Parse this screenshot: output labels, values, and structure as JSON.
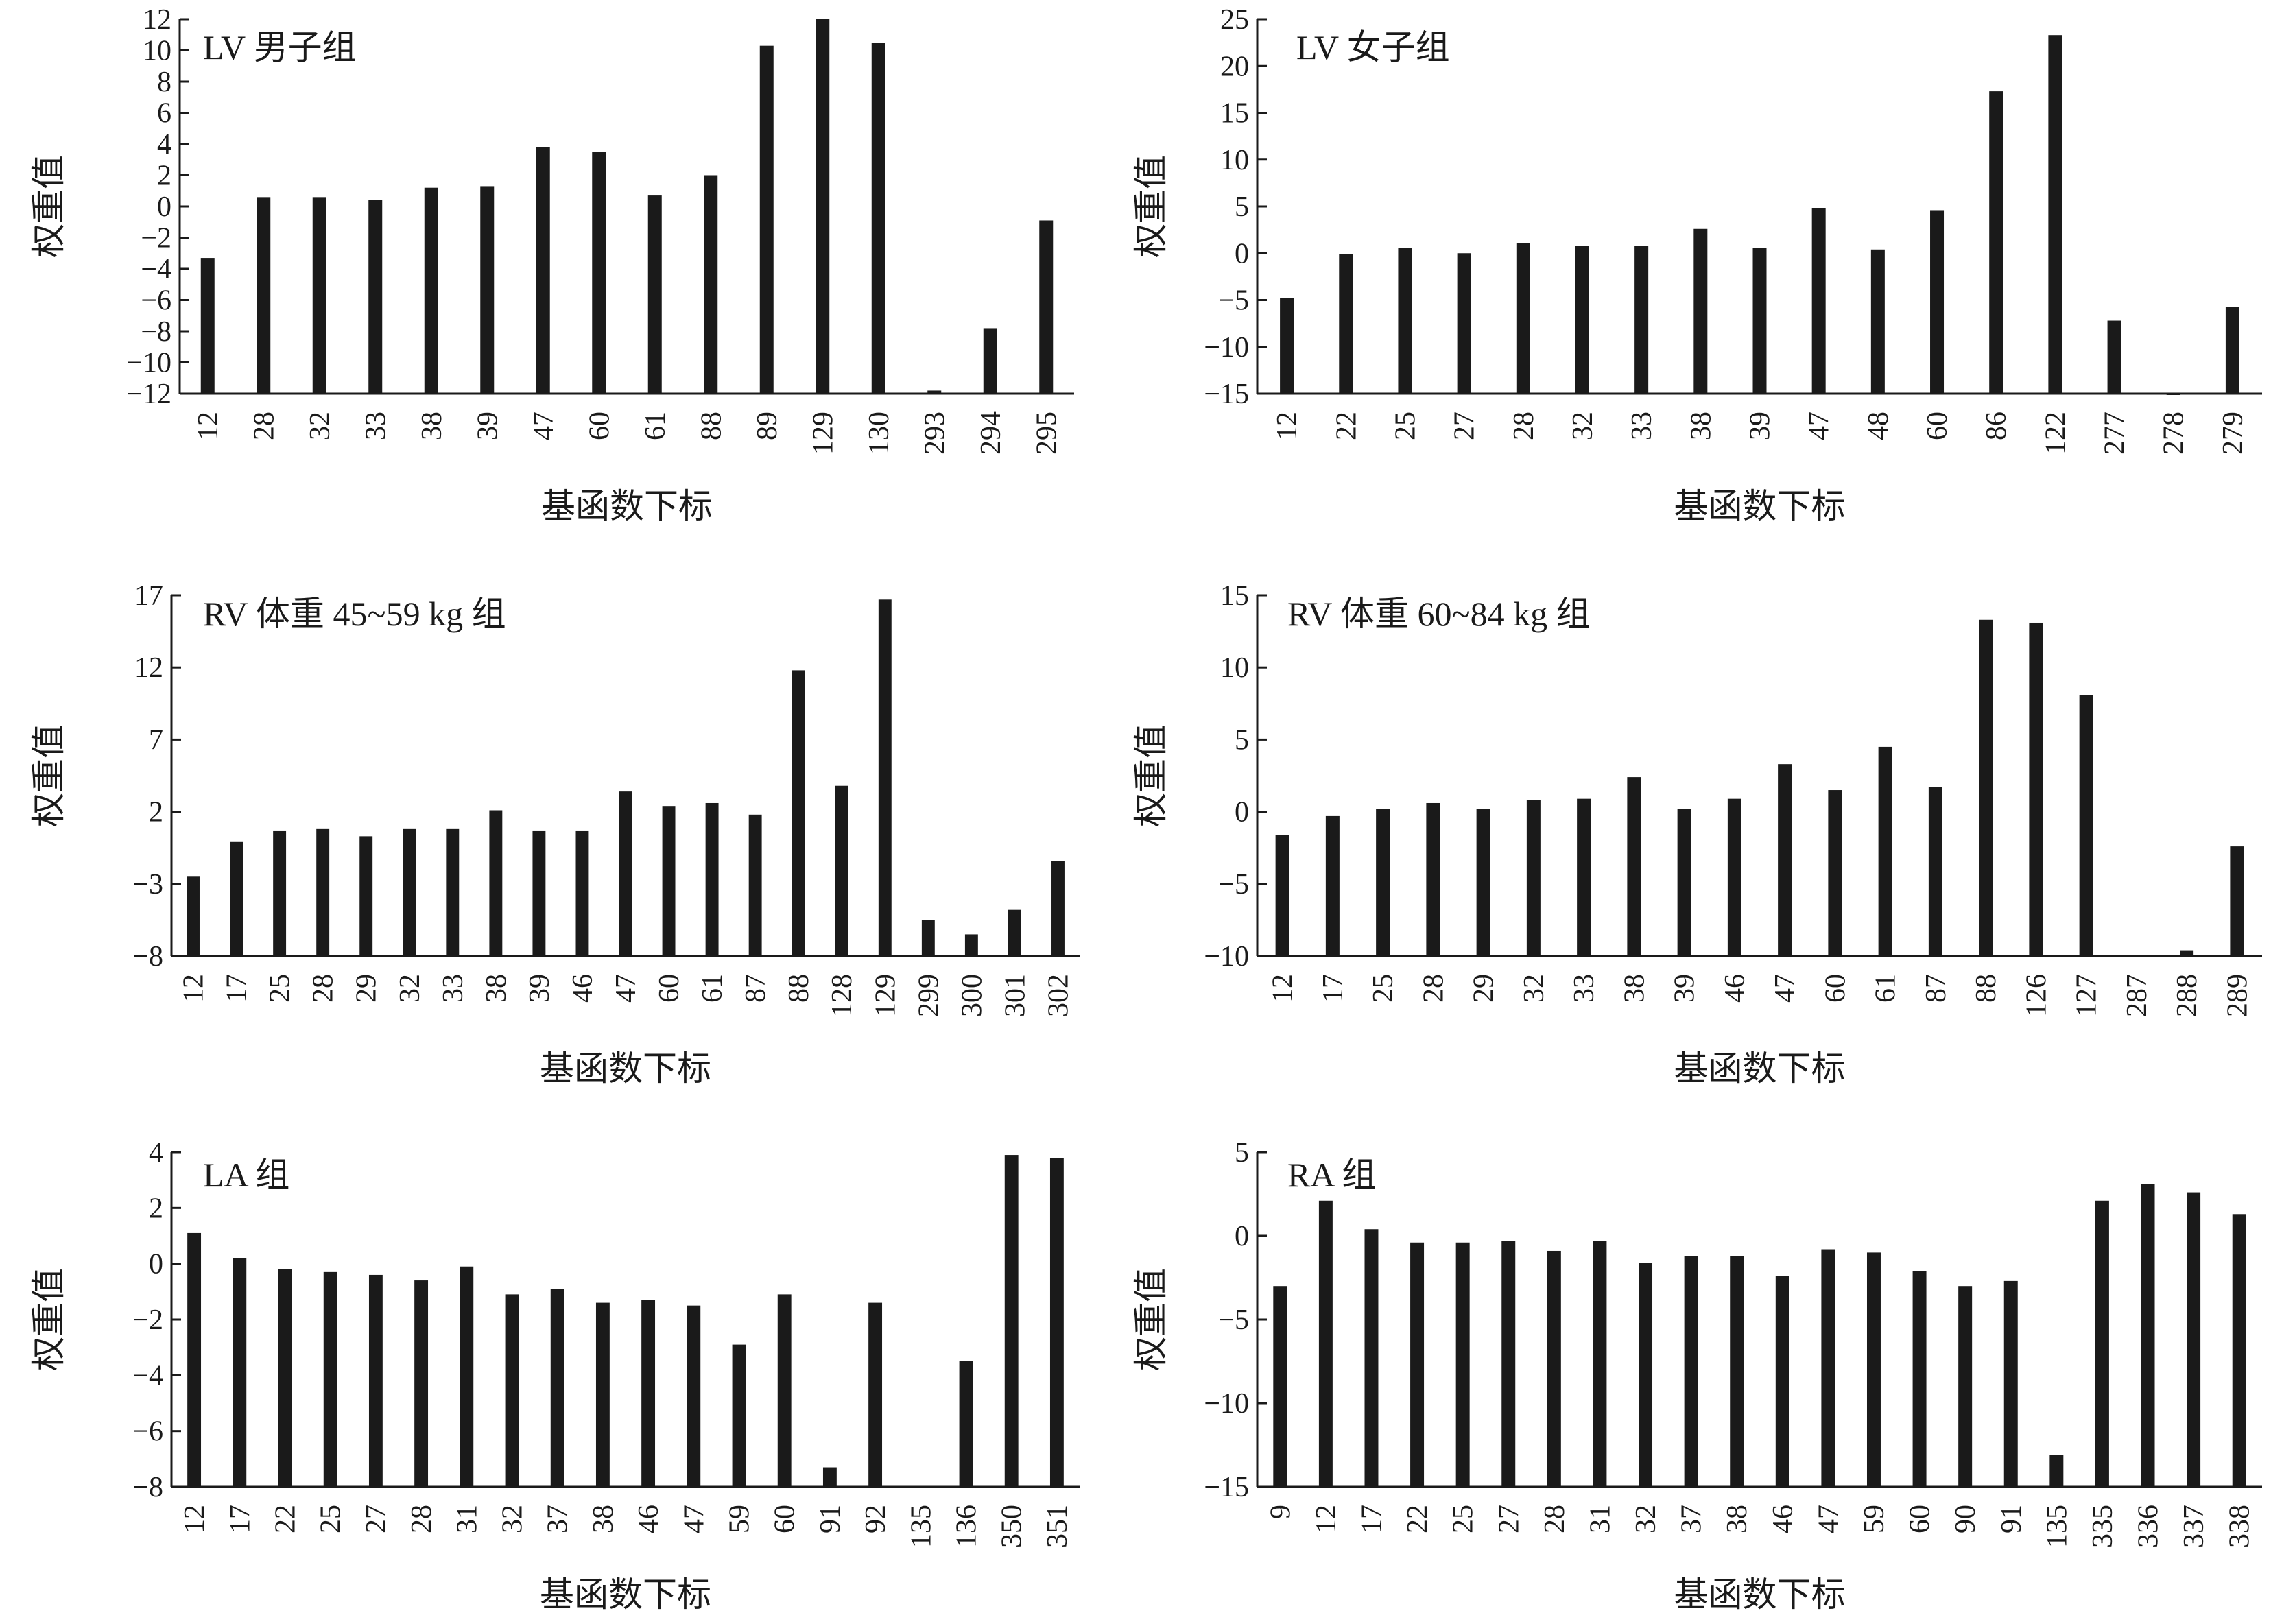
{
  "chart_data": [
    {
      "type": "bar",
      "title": "LV 男子组",
      "xlabel": "基函数下标",
      "ylabel": "权重值",
      "ylim": [
        -12,
        12
      ],
      "yticks": [
        -12,
        -10,
        -8,
        -6,
        -4,
        -2,
        0,
        2,
        4,
        6,
        8,
        10,
        12
      ],
      "categories": [
        "12",
        "28",
        "32",
        "33",
        "38",
        "39",
        "47",
        "60",
        "61",
        "88",
        "89",
        "129",
        "130",
        "293",
        "294",
        "295"
      ],
      "values": [
        -3.3,
        0.6,
        0.6,
        0.4,
        1.2,
        1.3,
        3.8,
        3.5,
        0.7,
        2.0,
        10.3,
        12.0,
        10.5,
        -11.8,
        -7.8,
        -0.9
      ],
      "grid": false
    },
    {
      "type": "bar",
      "title": "LV 女子组",
      "xlabel": "基函数下标",
      "ylabel": "权重值",
      "ylim": [
        -15,
        25
      ],
      "yticks": [
        -15,
        -10,
        -5,
        0,
        5,
        10,
        15,
        20,
        25
      ],
      "categories": [
        "12",
        "22",
        "25",
        "27",
        "28",
        "32",
        "33",
        "38",
        "39",
        "47",
        "48",
        "60",
        "86",
        "122",
        "277",
        "278",
        "279"
      ],
      "values": [
        -4.8,
        -0.1,
        0.6,
        0.0,
        1.1,
        0.8,
        0.8,
        2.6,
        0.6,
        4.8,
        0.4,
        4.6,
        17.3,
        23.3,
        -7.2,
        -15.0,
        -5.7
      ],
      "grid": false
    },
    {
      "type": "bar",
      "title": "RV 体重 45~59 kg 组",
      "xlabel": "基函数下标",
      "ylabel": "权重值",
      "ylim": [
        -8,
        17
      ],
      "yticks": [
        -8,
        -3,
        2,
        7,
        12,
        17
      ],
      "categories": [
        "12",
        "17",
        "25",
        "28",
        "29",
        "32",
        "33",
        "38",
        "39",
        "46",
        "47",
        "60",
        "61",
        "87",
        "88",
        "128",
        "129",
        "299",
        "300",
        "301",
        "302"
      ],
      "values": [
        -2.5,
        -0.1,
        0.7,
        0.8,
        0.3,
        0.8,
        0.8,
        2.1,
        0.7,
        0.7,
        3.4,
        2.4,
        2.6,
        1.8,
        11.8,
        3.8,
        16.7,
        -5.5,
        -6.5,
        -4.8,
        -1.4
      ],
      "grid": false
    },
    {
      "type": "bar",
      "title": "RV 体重 60~84 kg 组",
      "xlabel": "基函数下标",
      "ylabel": "权重值",
      "ylim": [
        -10,
        15
      ],
      "yticks": [
        -10,
        -5,
        0,
        5,
        10,
        15
      ],
      "categories": [
        "12",
        "17",
        "25",
        "28",
        "29",
        "32",
        "33",
        "38",
        "39",
        "46",
        "47",
        "60",
        "61",
        "87",
        "88",
        "126",
        "127",
        "287",
        "288",
        "289"
      ],
      "values": [
        -1.6,
        -0.3,
        0.2,
        0.6,
        0.2,
        0.8,
        0.9,
        2.4,
        0.2,
        0.9,
        3.3,
        1.5,
        4.5,
        1.7,
        13.3,
        13.1,
        8.1,
        -10.0,
        -9.6,
        -2.4
      ],
      "grid": false
    },
    {
      "type": "bar",
      "title": "LA 组",
      "xlabel": "基函数下标",
      "ylabel": "权重值",
      "ylim": [
        -8,
        4
      ],
      "yticks": [
        -8,
        -6,
        -4,
        -2,
        0,
        2,
        4
      ],
      "categories": [
        "12",
        "17",
        "22",
        "25",
        "27",
        "28",
        "31",
        "32",
        "37",
        "38",
        "46",
        "47",
        "59",
        "60",
        "91",
        "92",
        "135",
        "136",
        "350",
        "351"
      ],
      "values": [
        1.1,
        0.2,
        -0.2,
        -0.3,
        -0.4,
        -0.6,
        -0.1,
        -1.1,
        -0.9,
        -1.4,
        -1.3,
        -1.5,
        -2.9,
        -1.1,
        -7.3,
        -1.4,
        -8.0,
        -3.5,
        3.9,
        3.8
      ],
      "grid": false
    },
    {
      "type": "bar",
      "title": "RA 组",
      "xlabel": "基函数下标",
      "ylabel": "权重值",
      "ylim": [
        -15,
        5
      ],
      "yticks": [
        -15,
        -10,
        -5,
        0,
        5
      ],
      "categories": [
        "9",
        "12",
        "17",
        "22",
        "25",
        "27",
        "28",
        "31",
        "32",
        "37",
        "38",
        "46",
        "47",
        "59",
        "60",
        "90",
        "91",
        "135",
        "335",
        "336",
        "337",
        "338"
      ],
      "values": [
        -3.0,
        2.1,
        0.4,
        -0.4,
        -0.4,
        -0.3,
        -0.9,
        -0.3,
        -1.6,
        -1.2,
        -1.2,
        -2.4,
        -0.8,
        -1.0,
        -2.1,
        -3.0,
        -2.7,
        -13.1,
        2.1,
        3.1,
        2.6,
        1.3
      ],
      "grid": false
    }
  ]
}
